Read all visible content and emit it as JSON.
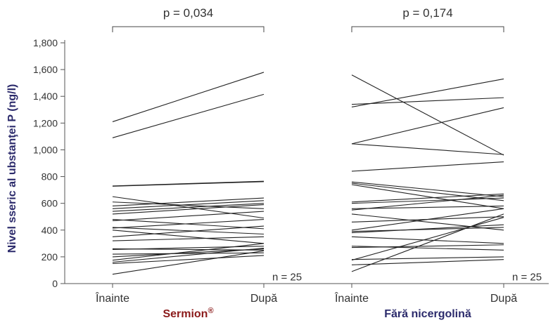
{
  "chart_data": {
    "type": "line",
    "ylabel": "Nivel sseric al ubstanţei P (ng/l)",
    "ylim": [
      0,
      1800
    ],
    "yticks": [
      "0",
      "200",
      "400",
      "600",
      "800",
      "1,000",
      "1,200",
      "1,400",
      "1,600",
      "1,800"
    ],
    "ytick_values": [
      0,
      200,
      400,
      600,
      800,
      1000,
      1200,
      1400,
      1600,
      1800
    ],
    "colors": {
      "sermion": "#8B1A1A",
      "control": "#2B2A6B",
      "lines": "#222222",
      "axis": "#555555"
    },
    "panels": [
      {
        "group": "Sermion",
        "group_sup": "®",
        "color": "#8B1A1A",
        "categories": [
          "Înainte",
          "După"
        ],
        "p_value": "p = 0,034",
        "n_label": "n = 25",
        "pairs": [
          [
            1210,
            1580
          ],
          [
            1090,
            1415
          ],
          [
            730,
            765
          ],
          [
            728,
            762
          ],
          [
            650,
            490
          ],
          [
            610,
            560
          ],
          [
            580,
            640
          ],
          [
            560,
            620
          ],
          [
            540,
            600
          ],
          [
            520,
            590
          ],
          [
            480,
            410
          ],
          [
            470,
            540
          ],
          [
            420,
            370
          ],
          [
            415,
            480
          ],
          [
            400,
            300
          ],
          [
            350,
            430
          ],
          [
            320,
            350
          ],
          [
            260,
            250
          ],
          [
            255,
            280
          ],
          [
            220,
            230
          ],
          [
            200,
            260
          ],
          [
            175,
            300
          ],
          [
            160,
            265
          ],
          [
            150,
            210
          ],
          [
            70,
            245
          ]
        ]
      },
      {
        "group": "Fără nicergolină",
        "group_sup": "",
        "color": "#2B2A6B",
        "categories": [
          "Înainte",
          "După"
        ],
        "p_value": "p = 0,174",
        "n_label": "n = 25",
        "pairs": [
          [
            1560,
            960
          ],
          [
            1340,
            1390
          ],
          [
            1320,
            1530
          ],
          [
            1045,
            1315
          ],
          [
            1045,
            965
          ],
          [
            840,
            910
          ],
          [
            760,
            650
          ],
          [
            750,
            620
          ],
          [
            740,
            560
          ],
          [
            610,
            670
          ],
          [
            600,
            640
          ],
          [
            560,
            580
          ],
          [
            550,
            660
          ],
          [
            520,
            400
          ],
          [
            460,
            500
          ],
          [
            400,
            560
          ],
          [
            390,
            420
          ],
          [
            380,
            440
          ],
          [
            350,
            300
          ],
          [
            280,
            250
          ],
          [
            270,
            290
          ],
          [
            180,
            200
          ],
          [
            175,
            495
          ],
          [
            140,
            180
          ],
          [
            90,
            520
          ]
        ]
      }
    ]
  }
}
